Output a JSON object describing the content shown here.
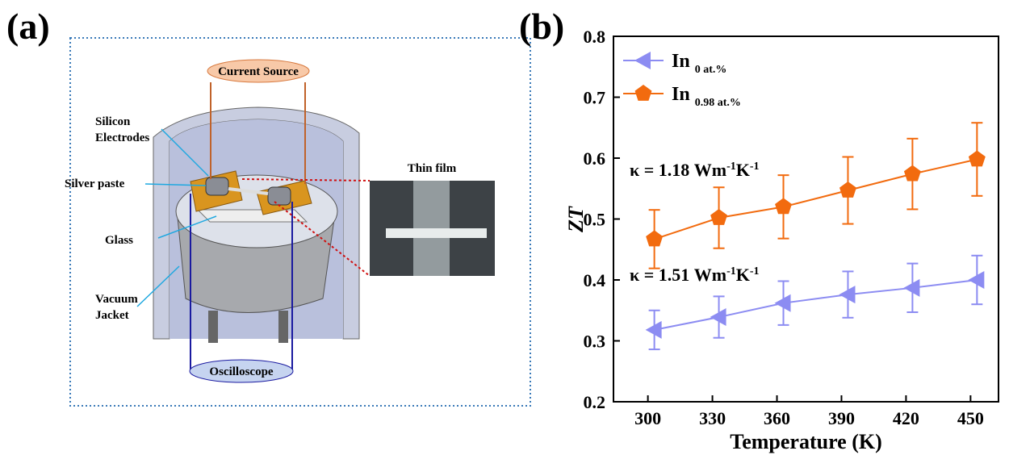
{
  "panel_a": {
    "label": "(a)",
    "current_source": "Current Source",
    "oscilloscope": "Oscilloscope",
    "thin_film": "Thin film",
    "callouts": [
      [
        "Silicon",
        "Electrodes"
      ],
      [
        "Silver paste"
      ],
      [
        "Glass"
      ],
      [
        "Vacuum",
        "Jacket"
      ]
    ]
  },
  "chart_data": {
    "type": "line",
    "panel_label": "(b)",
    "x_label": "Temperature (K)",
    "y_label": "ZT",
    "xlim": [
      284,
      463
    ],
    "xticks": [
      300,
      330,
      360,
      390,
      420,
      450
    ],
    "ylim": [
      0.2,
      0.8
    ],
    "yticks": [
      0.2,
      0.3,
      0.4,
      0.5,
      0.6,
      0.7,
      0.8
    ],
    "series": [
      {
        "name": "In",
        "name_sub": "0 at.%",
        "color": "#8c8cf2",
        "marker": "triangle-left",
        "x": [
          303,
          333,
          363,
          393,
          423,
          453
        ],
        "values": [
          0.318,
          0.339,
          0.362,
          0.376,
          0.387,
          0.4
        ],
        "errors": [
          0.032,
          0.034,
          0.036,
          0.038,
          0.04,
          0.04
        ]
      },
      {
        "name": "In",
        "name_sub": "0.98 at.%",
        "color": "#f26b0f",
        "marker": "pentagon",
        "x": [
          303,
          333,
          363,
          393,
          423,
          453
        ],
        "values": [
          0.467,
          0.502,
          0.52,
          0.547,
          0.574,
          0.598
        ],
        "errors": [
          0.048,
          0.05,
          0.052,
          0.055,
          0.058,
          0.06
        ]
      }
    ],
    "annotations": [
      [
        "κ = 1.18 Wm",
        "-1",
        "K",
        "-1"
      ],
      [
        "κ = 1.51 Wm",
        "-1",
        "K",
        "-1"
      ]
    ]
  }
}
